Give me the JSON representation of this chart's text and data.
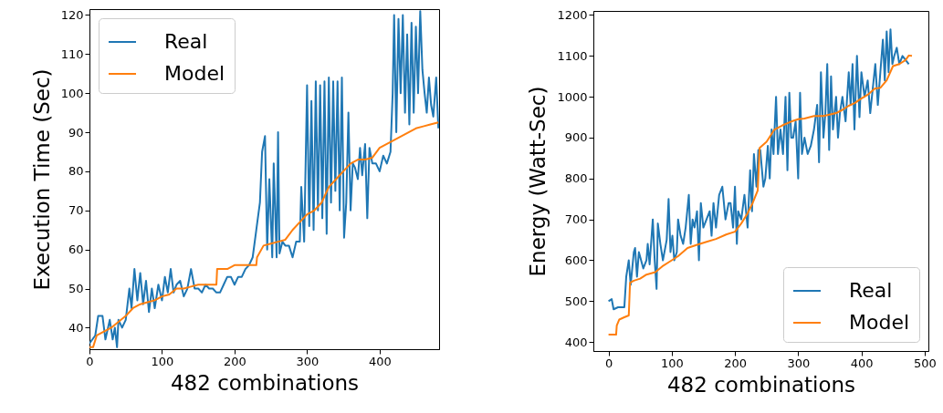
{
  "chart_data": [
    {
      "type": "line",
      "xlabel": "482 combinations",
      "ylabel": "Execution Time (Sec)",
      "xlim": [
        0,
        482
      ],
      "ylim": [
        34.5,
        121.5
      ],
      "xticks": [
        0,
        100,
        200,
        300,
        400
      ],
      "yticks": [
        40,
        50,
        60,
        70,
        80,
        90,
        100,
        110,
        120
      ],
      "legend": "top left",
      "series": [
        {
          "name": "Real",
          "color": "#1f77b4",
          "x": [
            0,
            8,
            12,
            18,
            22,
            28,
            32,
            35,
            38,
            40,
            45,
            50,
            55,
            58,
            62,
            66,
            70,
            74,
            78,
            82,
            86,
            90,
            95,
            100,
            104,
            108,
            112,
            116,
            120,
            125,
            130,
            135,
            140,
            145,
            150,
            155,
            160,
            165,
            170,
            175,
            180,
            185,
            190,
            195,
            200,
            205,
            210,
            215,
            220,
            225,
            230,
            235,
            238,
            242,
            245,
            248,
            252,
            254,
            258,
            260,
            262,
            266,
            270,
            275,
            280,
            285,
            290,
            292,
            296,
            300,
            303,
            306,
            309,
            312,
            315,
            318,
            321,
            324,
            327,
            330,
            333,
            336,
            339,
            342,
            345,
            348,
            351,
            354,
            357,
            360,
            363,
            366,
            370,
            373,
            376,
            380,
            383,
            386,
            390,
            395,
            400,
            405,
            410,
            415,
            418,
            420,
            423,
            426,
            429,
            432,
            435,
            438,
            441,
            444,
            447,
            450,
            453,
            456,
            459,
            462,
            465,
            468,
            471,
            474,
            478,
            481
          ],
          "values": [
            36,
            38,
            43,
            43,
            37,
            42,
            37,
            40,
            35,
            42,
            40,
            42,
            50,
            45,
            55,
            47,
            54,
            46,
            52,
            44,
            50,
            45,
            51,
            47,
            53,
            49,
            55,
            49,
            51,
            52,
            48,
            50,
            55,
            50,
            50,
            49,
            51,
            50,
            50,
            49,
            49,
            51,
            53,
            53,
            51,
            53,
            53,
            55,
            56,
            58,
            65,
            72,
            85,
            89,
            60,
            78,
            58,
            82,
            58,
            90,
            59,
            62,
            61,
            61,
            58,
            62,
            62,
            76,
            62,
            102,
            66,
            98,
            65,
            103,
            70,
            102,
            68,
            103,
            64,
            104,
            72,
            103,
            75,
            103,
            70,
            104,
            63,
            72,
            95,
            70,
            82,
            81,
            78,
            86,
            79,
            87,
            68,
            86,
            82,
            82,
            80,
            84,
            82,
            85,
            100,
            120,
            90,
            119,
            100,
            120,
            95,
            115,
            92,
            118,
            95,
            117,
            100,
            121,
            106,
            100,
            95,
            104,
            97,
            94,
            104,
            91
          ]
        },
        {
          "name": "Model",
          "color": "#ff7f0e",
          "x": [
            0,
            5,
            10,
            20,
            30,
            40,
            50,
            60,
            70,
            80,
            90,
            100,
            110,
            120,
            130,
            140,
            150,
            160,
            170,
            175,
            176,
            190,
            200,
            220,
            230,
            231,
            240,
            250,
            260,
            270,
            280,
            290,
            300,
            310,
            320,
            330,
            340,
            350,
            360,
            370,
            380,
            390,
            400,
            410,
            420,
            430,
            440,
            450,
            460,
            470,
            481
          ],
          "values": [
            35,
            35,
            38,
            39,
            40,
            41.5,
            43,
            45,
            46,
            46.5,
            47,
            48,
            48.5,
            50,
            50,
            50.5,
            51,
            51,
            51,
            51,
            55,
            55,
            56,
            56,
            56,
            58,
            61,
            61.5,
            62,
            62.5,
            65,
            67,
            69,
            70,
            72,
            76,
            78,
            80,
            82,
            83,
            83,
            83.5,
            86,
            87,
            88,
            89,
            90,
            91,
            91.5,
            92,
            92.5
          ]
        }
      ]
    },
    {
      "type": "line",
      "xlabel": "482 combinations",
      "ylabel": "Energy (Watt-Sec)",
      "xlim": [
        -24,
        506
      ],
      "ylim": [
        378,
        1210
      ],
      "xticks": [
        0,
        100,
        200,
        300,
        400,
        500
      ],
      "yticks": [
        400,
        500,
        600,
        700,
        800,
        900,
        1000,
        1100,
        1200
      ],
      "legend": "bottom right",
      "series": [
        {
          "name": "Real",
          "color": "#1f77b4",
          "x": [
            0,
            5,
            8,
            15,
            25,
            28,
            32,
            35,
            40,
            42,
            45,
            48,
            55,
            60,
            62,
            65,
            70,
            73,
            76,
            78,
            82,
            86,
            92,
            95,
            98,
            101,
            104,
            108,
            110,
            114,
            118,
            122,
            127,
            130,
            133,
            136,
            140,
            143,
            146,
            150,
            155,
            160,
            163,
            166,
            170,
            175,
            180,
            185,
            190,
            193,
            197,
            200,
            203,
            205,
            210,
            215,
            220,
            224,
            227,
            230,
            234,
            237,
            240,
            245,
            248,
            252,
            255,
            258,
            261,
            265,
            268,
            272,
            276,
            280,
            283,
            286,
            289,
            292,
            296,
            300,
            303,
            306,
            310,
            315,
            320,
            325,
            330,
            333,
            336,
            340,
            343,
            346,
            349,
            352,
            355,
            360,
            363,
            366,
            370,
            375,
            380,
            383,
            386,
            389,
            393,
            397,
            400,
            405,
            410,
            414,
            418,
            422,
            426,
            430,
            434,
            437,
            440,
            443,
            446,
            449,
            452,
            456,
            460,
            465,
            470,
            475
          ],
          "values": [
            500,
            505,
            480,
            485,
            485,
            560,
            600,
            540,
            620,
            630,
            560,
            620,
            580,
            600,
            640,
            590,
            700,
            600,
            530,
            690,
            640,
            600,
            650,
            750,
            620,
            660,
            600,
            620,
            700,
            660,
            640,
            680,
            760,
            640,
            700,
            680,
            720,
            600,
            740,
            680,
            700,
            720,
            660,
            740,
            680,
            760,
            780,
            700,
            740,
            740,
            680,
            780,
            640,
            720,
            700,
            760,
            680,
            820,
            720,
            860,
            780,
            870,
            870,
            780,
            800,
            880,
            800,
            920,
            860,
            1000,
            860,
            920,
            860,
            1000,
            820,
            1010,
            900,
            900,
            940,
            800,
            1010,
            860,
            900,
            860,
            880,
            920,
            980,
            840,
            1060,
            900,
            960,
            1080,
            870,
            1050,
            920,
            1000,
            900,
            960,
            1000,
            940,
            1060,
            980,
            1080,
            920,
            1100,
            950,
            1060,
            1000,
            1040,
            960,
            1020,
            1080,
            980,
            1060,
            1140,
            1040,
            1160,
            1060,
            1165,
            1080,
            1100,
            1120,
            1080,
            1100,
            1090,
            1080
          ]
        },
        {
          "name": "Model",
          "color": "#ff7f0e",
          "x": [
            0,
            12,
            13,
            17,
            24,
            32,
            34,
            40,
            50,
            60,
            74,
            85,
            100,
            110,
            125,
            140,
            155,
            170,
            186,
            200,
            210,
            220,
            228,
            236,
            239,
            250,
            262,
            275,
            290,
            300,
            310,
            325,
            340,
            360,
            370,
            380,
            390,
            398,
            410,
            421,
            430,
            440,
            450,
            460,
            470,
            475,
            480
          ],
          "values": [
            418,
            418,
            440,
            455,
            460,
            465,
            545,
            550,
            555,
            565,
            571,
            585,
            600,
            610,
            630,
            638,
            645,
            652,
            663,
            670,
            690,
            715,
            740,
            771,
            875,
            890,
            919,
            930,
            940,
            945,
            947,
            953,
            953,
            960,
            968,
            978,
            985,
            994,
            1005,
            1020,
            1022,
            1040,
            1075,
            1080,
            1090,
            1101,
            1100
          ]
        }
      ]
    }
  ]
}
